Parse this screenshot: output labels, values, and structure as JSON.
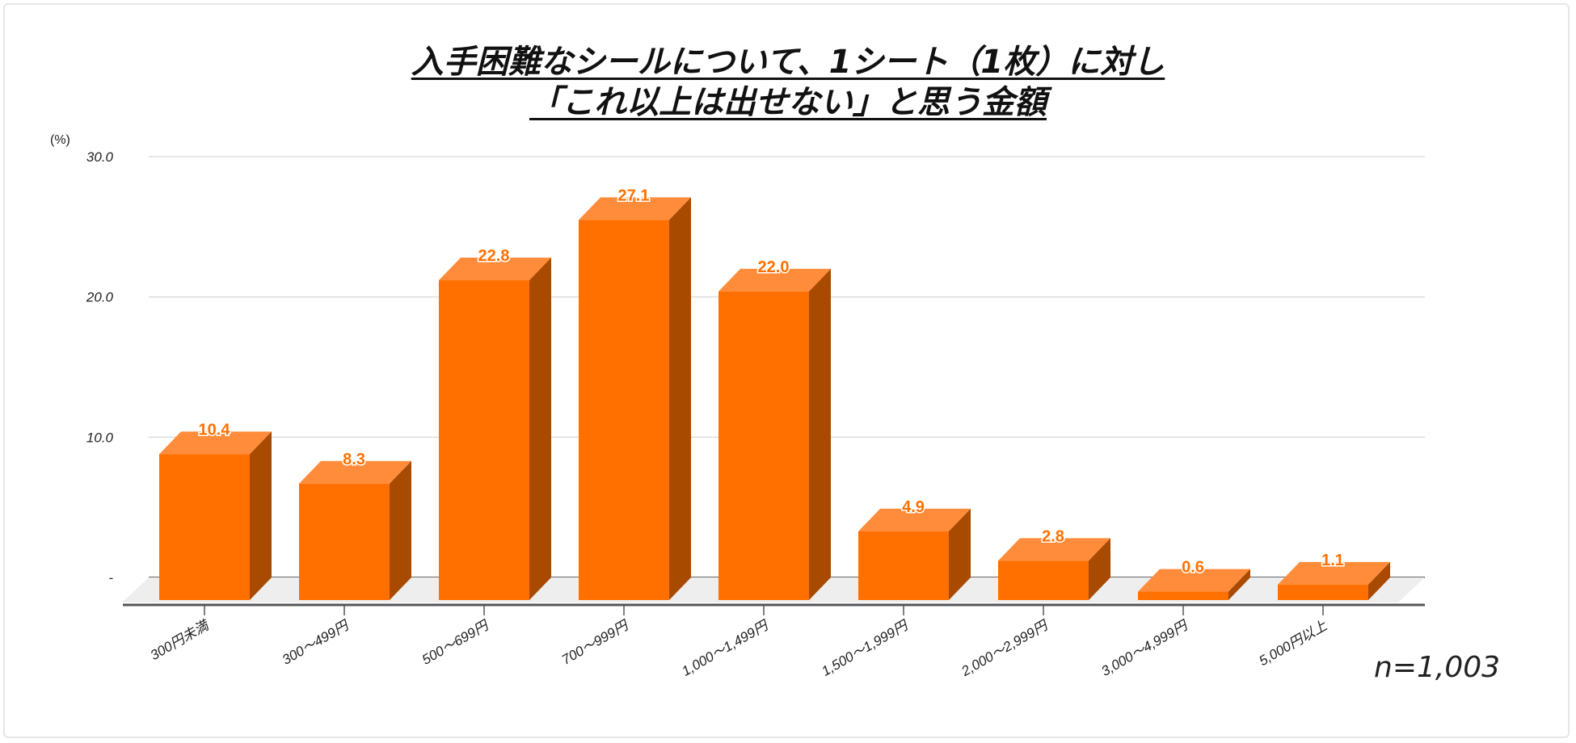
{
  "chart_data": {
    "type": "bar",
    "style": "3d",
    "title_lines": [
      "入手困難なシールについて、1シート（1枚）に対し",
      "「これ以上は出せない」と思う金額"
    ],
    "ylabel": "(%)",
    "ylim": [
      0,
      30
    ],
    "yticks": [
      {
        "v": 0,
        "label": "-"
      },
      {
        "v": 10,
        "label": "10.0"
      },
      {
        "v": 20,
        "label": "20.0"
      },
      {
        "v": 30,
        "label": "30.0"
      }
    ],
    "categories": [
      "300円未満",
      "300～499円",
      "500～699円",
      "700～999円",
      "1,000～1,499円",
      "1,500～1,999円",
      "2,000～2,999円",
      "3,000～4,999円",
      "5,000円以上"
    ],
    "values": [
      10.4,
      8.3,
      22.8,
      27.1,
      22.0,
      4.9,
      2.8,
      0.6,
      1.1
    ],
    "data_labels": [
      "10.4",
      "8.3",
      "22.8",
      "27.1",
      "22.0",
      "4.9",
      "2.8",
      "0.6",
      "1.1"
    ],
    "grid": true,
    "legend": "none",
    "colors": {
      "front": "#ff7000",
      "top": "#ff8c3a",
      "side": "#a84a00",
      "label": "#ff7000"
    },
    "note": "n=1,003"
  }
}
